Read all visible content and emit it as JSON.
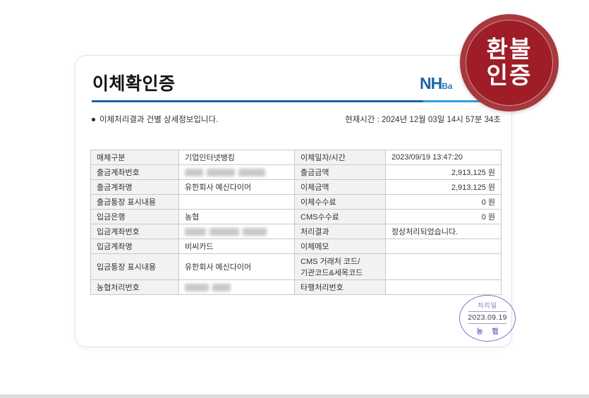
{
  "header": {
    "title": "이체확인증",
    "logo_nh": "NH",
    "logo_bank": "Ba"
  },
  "refund_stamp": {
    "line1": "환불",
    "line2": "인증"
  },
  "info": {
    "bullet_text": "이체처리결과 건별 상세정보입니다.",
    "current_time": "현재시간 : 2024년 12월 03일 14시 57분 34초"
  },
  "table": {
    "rows": [
      {
        "label1": "매체구분",
        "value1": "기업인터넷뱅킹",
        "label2": "이체일자/시간",
        "value2": "2023/09/19 13:47:20",
        "value2_align": "left"
      },
      {
        "label1": "출금계좌번호",
        "value1": "",
        "value1_masked": [
          26,
          40,
          38
        ],
        "label2": "출금금액",
        "value2": "2,913,125 원",
        "value2_align": "right"
      },
      {
        "label1": "출금계좌명",
        "value1": "유한회사 예신다이어",
        "label2": "이체금액",
        "value2": "2,913,125 원",
        "value2_align": "right"
      },
      {
        "label1": "출금통장 표시내용",
        "value1": "",
        "label2": "이체수수료",
        "value2": "0 원",
        "value2_align": "right"
      },
      {
        "label1": "입금은행",
        "value1": "농협",
        "label2": "CMS수수료",
        "value2": "0 원",
        "value2_align": "right"
      },
      {
        "label1": "입금계좌번호",
        "value1": "",
        "value1_masked": [
          30,
          42,
          34
        ],
        "label2": "처리결과",
        "value2": "정상처리되었습니다.",
        "value2_align": "left"
      },
      {
        "label1": "입금계좌명",
        "value1": "비씨카드",
        "label2": "이체메모",
        "value2": "",
        "value2_align": "left"
      },
      {
        "label1": "입금통장 표시내용",
        "value1": "유한회사 예신다이어",
        "label2": "CMS 거래처 코드/\n기관코드&세목코드",
        "value2": "",
        "value2_align": "left"
      },
      {
        "label1": "농협처리번호",
        "value1": "",
        "value1_masked": [
          34,
          26
        ],
        "label2": "타행처리번호",
        "value2": "",
        "value2_align": "left"
      }
    ]
  },
  "date_stamp": {
    "top": "처리일",
    "date": "2023.09.19",
    "bottom": "농 협"
  },
  "colors": {
    "brand_blue": "#1c64ad",
    "divider_dark": "#1d63a8",
    "divider_light": "#2f9fe0",
    "refund_stamp_red": "#9e1d27",
    "date_stamp_purple": "#7b73c5",
    "table_border": "#c9c9c9",
    "label_cell_bg": "#f2f2f2"
  }
}
